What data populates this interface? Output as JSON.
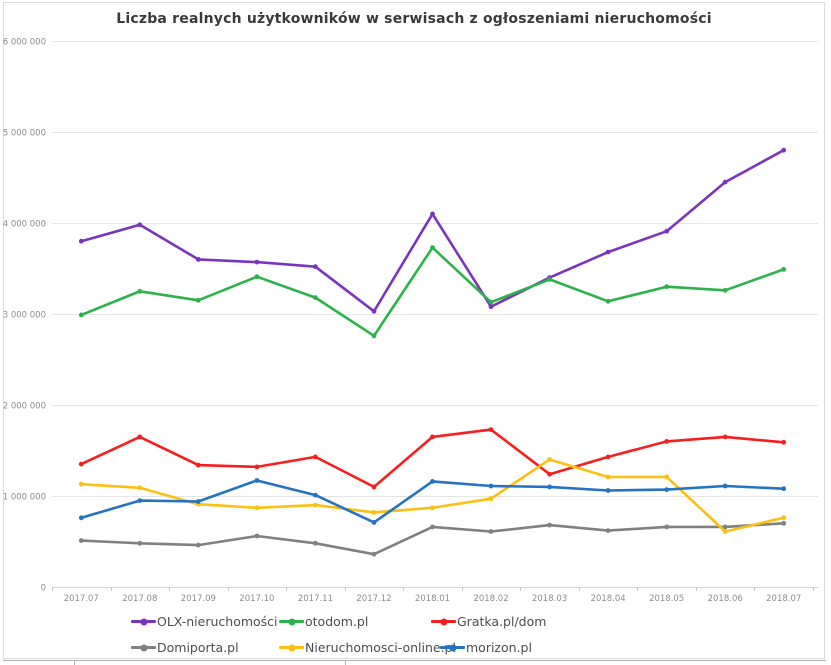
{
  "chart_data": {
    "type": "line",
    "title": "Liczba realnych użytkowników w serwisach z ogłoszeniami nieruchomości",
    "legend_position": "bottom",
    "grid": true,
    "categories": [
      "2017.07",
      "2017.08",
      "2017.09",
      "2017.10",
      "2017.11",
      "2017.12",
      "2018.01",
      "2018.02",
      "2018.03",
      "2018.04",
      "2018.05",
      "2018.06",
      "2018.07"
    ],
    "y_axis": {
      "min": 0,
      "max": 6000000,
      "ticks": [
        {
          "value": 0,
          "label": "0"
        },
        {
          "value": 1000000,
          "label": "1 000 000"
        },
        {
          "value": 2000000,
          "label": "2 000 000"
        },
        {
          "value": 3000000,
          "label": "3 000 000"
        },
        {
          "value": 4000000,
          "label": "4 000 000"
        },
        {
          "value": 5000000,
          "label": "5 000 000"
        },
        {
          "value": 6000000,
          "label": "6 000 000"
        }
      ]
    },
    "series": [
      {
        "name": "OLX-nieruchomości",
        "color": "#7a35be",
        "values": [
          3800000,
          3980000,
          3600000,
          3570000,
          3520000,
          3030000,
          4100000,
          3080000,
          3400000,
          3680000,
          3910000,
          4450000,
          4800000
        ]
      },
      {
        "name": "otodom.pl",
        "color": "#2bb34b",
        "values": [
          2990000,
          3250000,
          3150000,
          3410000,
          3180000,
          2760000,
          3730000,
          3130000,
          3380000,
          3140000,
          3300000,
          3260000,
          3490000
        ]
      },
      {
        "name": "Gratka.pl/dom",
        "color": "#f71e1e",
        "values": [
          1350000,
          1650000,
          1340000,
          1320000,
          1430000,
          1100000,
          1650000,
          1730000,
          1240000,
          1430000,
          1600000,
          1650000,
          1590000
        ]
      },
      {
        "name": "Domiporta.pl",
        "color": "#808080",
        "values": [
          510000,
          480000,
          460000,
          560000,
          480000,
          360000,
          660000,
          610000,
          680000,
          620000,
          660000,
          660000,
          700000
        ]
      },
      {
        "name": "Nieruchomosci-online.pl",
        "color": "#fdbf11",
        "values": [
          1130000,
          1090000,
          910000,
          870000,
          900000,
          820000,
          870000,
          970000,
          1400000,
          1210000,
          1210000,
          610000,
          760000
        ]
      },
      {
        "name": "morizon.pl",
        "color": "#2373c3",
        "values": [
          760000,
          950000,
          940000,
          1170000,
          1010000,
          710000,
          1160000,
          1110000,
          1100000,
          1060000,
          1070000,
          1110000,
          1080000
        ]
      }
    ],
    "colors": {
      "gridline": "#e5e5e5",
      "axis_line": "#d5d5d5",
      "tick": "#c9c9c9",
      "axis_text": "#8c8c8c"
    }
  }
}
